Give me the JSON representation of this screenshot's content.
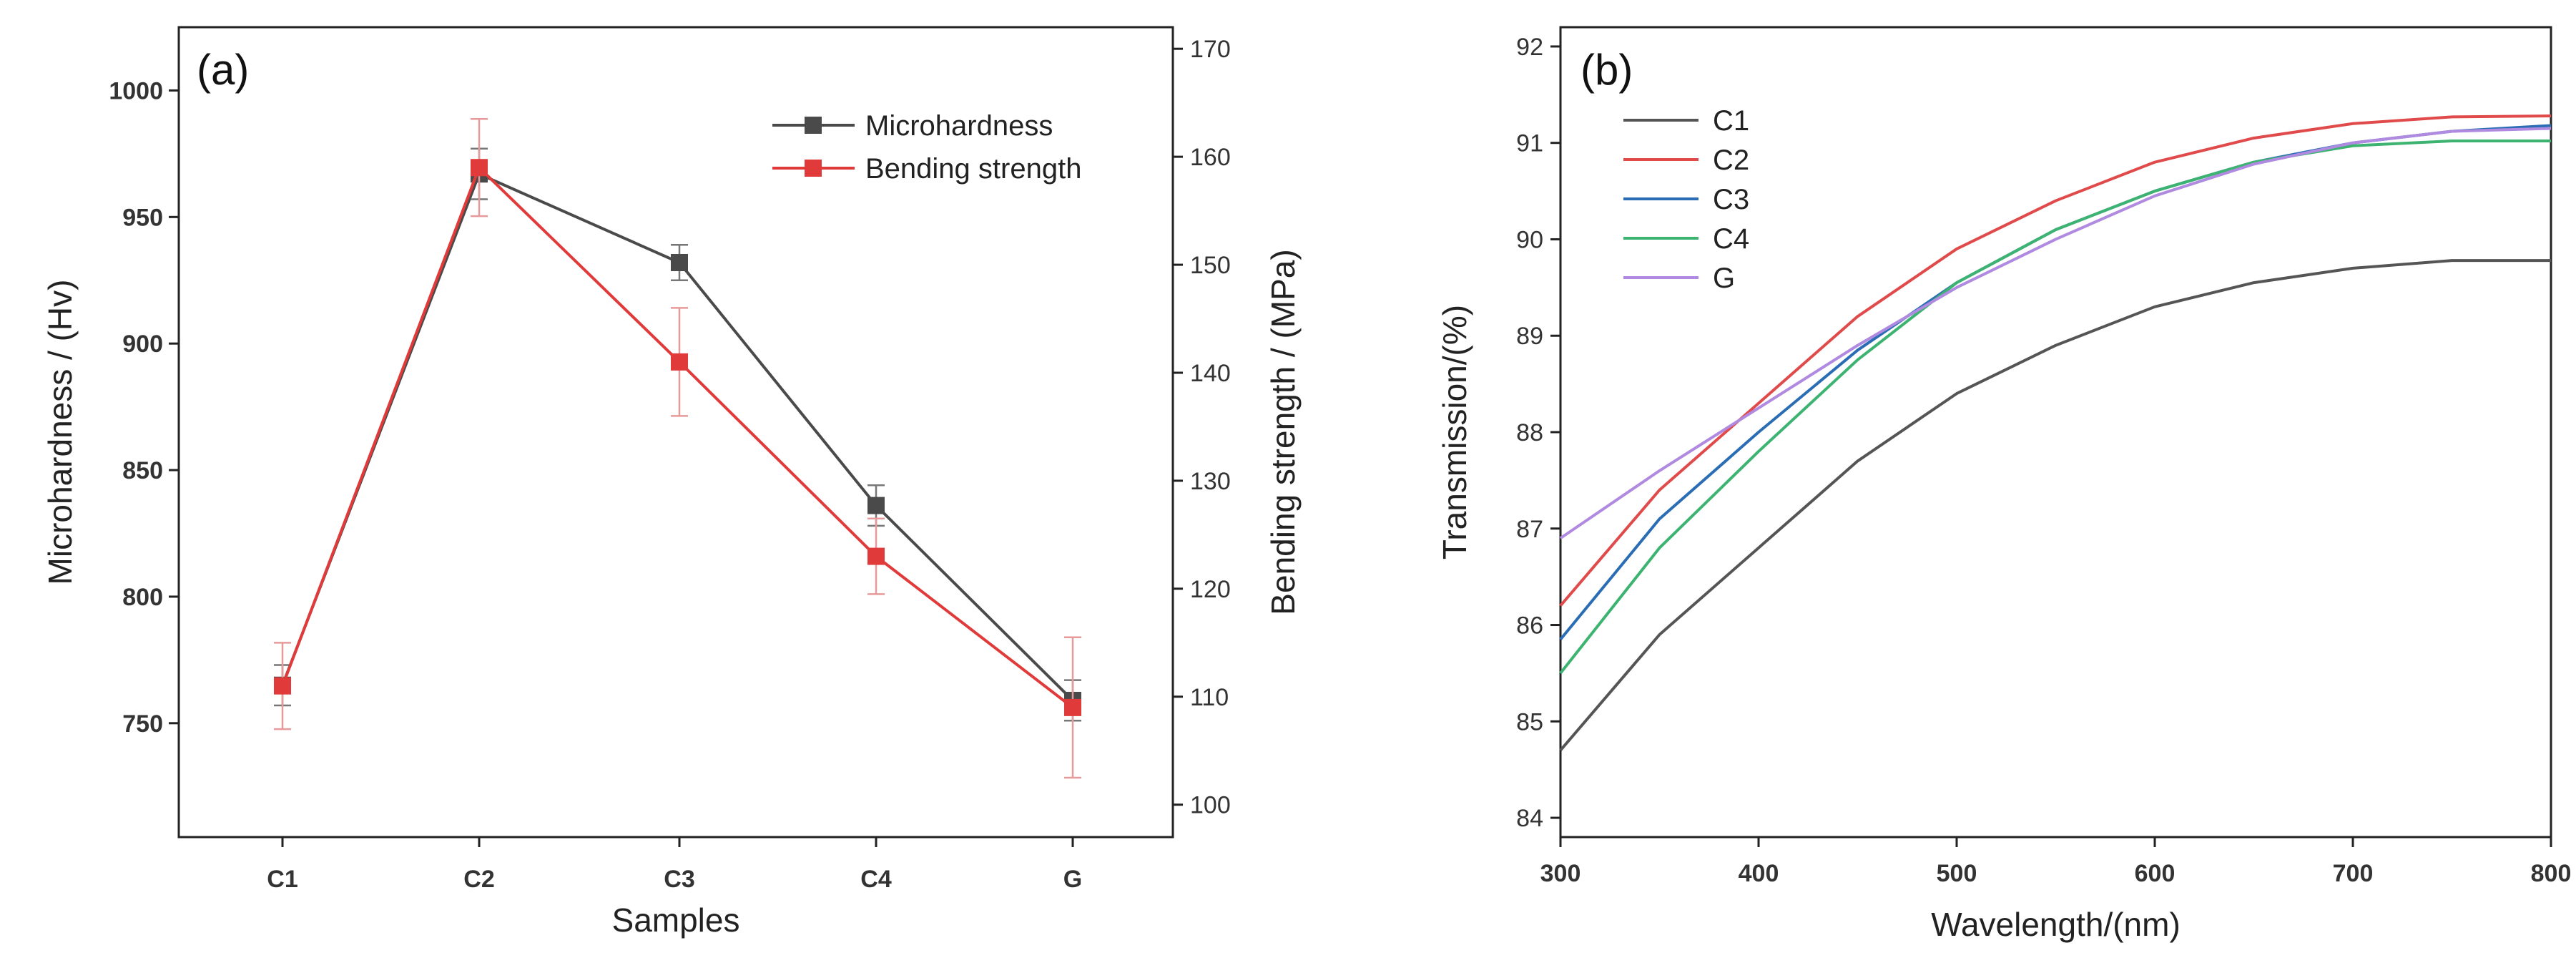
{
  "chart_data": [
    {
      "type": "line",
      "panel_label": "(a)",
      "xlabel": "Samples",
      "ylabel": "Microhardness / (Hv)",
      "y2label": "Bending strength / (MPa)",
      "categories": [
        "C1",
        "C2",
        "C3",
        "C4",
        "G"
      ],
      "ylim": [
        705,
        1025
      ],
      "y2lim": [
        97,
        172
      ],
      "yticks": [
        750,
        800,
        850,
        900,
        950,
        1000
      ],
      "y2ticks": [
        100,
        110,
        120,
        130,
        140,
        150,
        160,
        170
      ],
      "legend_position": "top-right",
      "series": [
        {
          "name": "Microhardness",
          "color": "#4a4a4a",
          "axis": "left",
          "values": [
            765,
            967,
            932,
            836,
            759
          ],
          "errors": [
            8,
            10,
            7,
            8,
            8
          ]
        },
        {
          "name": "Bending strength",
          "color": "#e03a3a",
          "axis": "right",
          "values": [
            111,
            159,
            141,
            123,
            109
          ],
          "errors": [
            4,
            4.5,
            5,
            3.5,
            6.5
          ]
        }
      ]
    },
    {
      "type": "line",
      "panel_label": "(b)",
      "xlabel": "Wavelength/(nm)",
      "ylabel": "Transmission/(%)",
      "xlim": [
        300,
        800
      ],
      "ylim": [
        83.8,
        92.2
      ],
      "xticks": [
        300,
        400,
        500,
        600,
        700,
        800
      ],
      "yticks": [
        84,
        85,
        86,
        87,
        88,
        89,
        90,
        91,
        92
      ],
      "legend_position": "top-left",
      "x": [
        300,
        350,
        400,
        450,
        500,
        550,
        600,
        650,
        700,
        750,
        800
      ],
      "series": [
        {
          "name": "C1",
          "color": "#555555",
          "values": [
            84.7,
            85.9,
            86.8,
            87.7,
            88.4,
            88.9,
            89.3,
            89.55,
            89.7,
            89.78,
            89.78
          ]
        },
        {
          "name": "C2",
          "color": "#e04a4a",
          "values": [
            86.2,
            87.4,
            88.3,
            89.2,
            89.9,
            90.4,
            90.8,
            91.05,
            91.2,
            91.27,
            91.28
          ]
        },
        {
          "name": "C3",
          "color": "#2a6db5",
          "values": [
            85.85,
            87.1,
            88.0,
            88.85,
            89.55,
            90.1,
            90.5,
            90.8,
            91.0,
            91.12,
            91.18
          ]
        },
        {
          "name": "C4",
          "color": "#3cb371",
          "values": [
            85.5,
            86.8,
            87.8,
            88.75,
            89.55,
            90.1,
            90.5,
            90.8,
            90.97,
            91.02,
            91.02
          ]
        },
        {
          "name": "G",
          "color": "#b08ae0",
          "values": [
            86.9,
            87.6,
            88.25,
            88.9,
            89.5,
            90.0,
            90.45,
            90.78,
            91.0,
            91.12,
            91.15
          ]
        }
      ]
    }
  ]
}
